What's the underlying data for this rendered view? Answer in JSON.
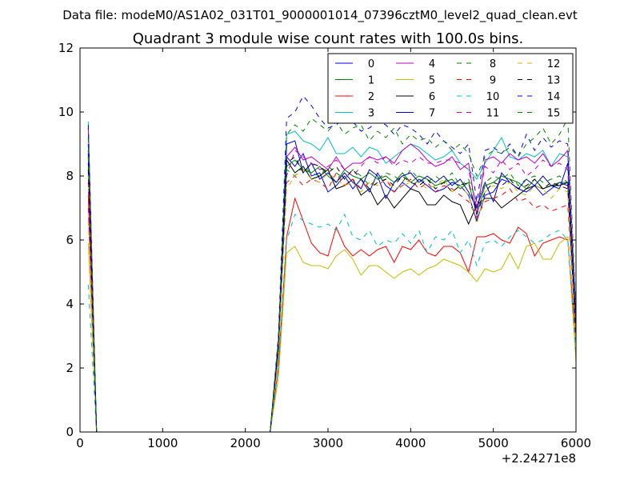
{
  "chart_data": {
    "type": "line",
    "suptitle": "Data file: modeM0/AS1A02_031T01_9000001014_07396cztM0_level2_quad_clean.evt",
    "title": "Quadrant 3 module wise count rates with 100.0s bins.",
    "xlabel": "",
    "ylabel": "",
    "x_offset_label": "+2.24271e8",
    "xlim": [
      0,
      6000
    ],
    "ylim": [
      0,
      12
    ],
    "xticks": [
      0,
      1000,
      2000,
      3000,
      4000,
      5000,
      6000
    ],
    "xtick_labels": [
      "0",
      "1000",
      "2000",
      "3000",
      "4000",
      "5000",
      "6000"
    ],
    "yticks": [
      0,
      2,
      4,
      6,
      8,
      10,
      12
    ],
    "ytick_labels": [
      "0",
      "2",
      "4",
      "6",
      "8",
      "10",
      "12"
    ],
    "x": [
      100,
      200,
      300,
      400,
      500,
      600,
      700,
      800,
      900,
      1000,
      1100,
      1200,
      1300,
      1400,
      1500,
      1600,
      1700,
      1800,
      1900,
      2000,
      2100,
      2200,
      2300,
      2400,
      2500,
      2600,
      2700,
      2800,
      2900,
      3000,
      3100,
      3200,
      3300,
      3400,
      3500,
      3600,
      3700,
      3800,
      3900,
      4000,
      4100,
      4200,
      4300,
      4400,
      4500,
      4600,
      4700,
      4800,
      4900,
      5000,
      5100,
      5200,
      5300,
      5400,
      5500,
      5600,
      5700,
      5800,
      5900,
      6000
    ],
    "legend": {
      "location": "upper right",
      "columns": 4
    },
    "series": [
      {
        "name": "0",
        "color": "#0000ff",
        "linestyle": "solid",
        "values": [
          9.0,
          0.0,
          0,
          0,
          0,
          0,
          0,
          0,
          0,
          0,
          0,
          0,
          0,
          0,
          0,
          0,
          0,
          0,
          0,
          0,
          0,
          0,
          0,
          2.5,
          8.6,
          8.3,
          8.7,
          8.0,
          8.1,
          7.5,
          7.7,
          8.0,
          7.6,
          7.9,
          7.5,
          8.1,
          7.7,
          7.5,
          7.8,
          7.6,
          7.9,
          7.7,
          7.5,
          7.6,
          7.8,
          7.7,
          7.4,
          6.6,
          7.4,
          7.5,
          7.9,
          7.8,
          7.6,
          7.5,
          7.7,
          7.4,
          7.6,
          7.8,
          7.7,
          3.2
        ]
      },
      {
        "name": "1",
        "color": "#008000",
        "linestyle": "solid",
        "values": [
          8.8,
          0.0,
          0,
          0,
          0,
          0,
          0,
          0,
          0,
          0,
          0,
          0,
          0,
          0,
          0,
          0,
          0,
          0,
          0,
          0,
          0,
          0,
          0,
          2.6,
          8.3,
          8.5,
          8.2,
          8.1,
          8.3,
          8.0,
          7.8,
          8.2,
          8.0,
          7.9,
          8.1,
          7.9,
          8.0,
          7.8,
          8.1,
          7.8,
          8.0,
          7.9,
          7.7,
          7.8,
          7.9,
          7.6,
          7.8,
          6.8,
          7.7,
          7.8,
          8.0,
          7.9,
          7.8,
          7.6,
          7.9,
          7.6,
          7.7,
          7.8,
          7.8,
          3.1
        ]
      },
      {
        "name": "2",
        "color": "#ff0000",
        "linestyle": "solid",
        "values": [
          7.4,
          0.0,
          0,
          0,
          0,
          0,
          0,
          0,
          0,
          0,
          0,
          0,
          0,
          0,
          0,
          0,
          0,
          0,
          0,
          0,
          0,
          0,
          0,
          2.0,
          6.1,
          7.3,
          6.6,
          5.9,
          5.6,
          5.5,
          6.4,
          5.8,
          5.5,
          5.7,
          5.5,
          5.7,
          5.8,
          5.3,
          5.8,
          5.7,
          6.0,
          5.6,
          5.5,
          5.8,
          5.8,
          5.6,
          5.0,
          6.1,
          6.1,
          6.2,
          6.0,
          5.9,
          6.4,
          6.2,
          5.5,
          5.9,
          6.0,
          6.1,
          6.0,
          2.8
        ]
      },
      {
        "name": "3",
        "color": "#00bfbf",
        "linestyle": "solid",
        "values": [
          9.7,
          0.0,
          0,
          0,
          0,
          0,
          0,
          0,
          0,
          0,
          0,
          0,
          0,
          0,
          0,
          0,
          0,
          0,
          0,
          0,
          0,
          0,
          0,
          2.9,
          9.3,
          9.4,
          9.1,
          9.0,
          8.8,
          9.2,
          8.7,
          8.7,
          8.9,
          8.6,
          8.9,
          8.8,
          8.4,
          8.6,
          8.8,
          9.0,
          8.9,
          8.7,
          8.5,
          8.6,
          8.8,
          8.4,
          8.2,
          7.9,
          8.4,
          8.8,
          9.2,
          8.6,
          8.5,
          8.7,
          8.6,
          8.8,
          8.3,
          8.7,
          8.6,
          3.5
        ]
      },
      {
        "name": "4",
        "color": "#bf00bf",
        "linestyle": "solid",
        "values": [
          9.5,
          0.0,
          0,
          0,
          0,
          0,
          0,
          0,
          0,
          0,
          0,
          0,
          0,
          0,
          0,
          0,
          0,
          0,
          0,
          0,
          0,
          0,
          0,
          2.8,
          8.6,
          8.9,
          8.5,
          8.6,
          8.4,
          8.2,
          8.6,
          8.2,
          8.4,
          8.4,
          8.6,
          8.5,
          8.6,
          8.4,
          8.8,
          9.0,
          8.8,
          8.5,
          8.3,
          8.4,
          8.6,
          8.2,
          8.4,
          6.8,
          8.5,
          8.6,
          8.4,
          8.7,
          8.5,
          8.6,
          8.4,
          8.7,
          8.3,
          8.5,
          8.8,
          3.3
        ]
      },
      {
        "name": "5",
        "color": "#bfbf00",
        "linestyle": "solid",
        "values": [
          5.9,
          0.0,
          0,
          0,
          0,
          0,
          0,
          0,
          0,
          0,
          0,
          0,
          0,
          0,
          0,
          0,
          0,
          0,
          0,
          0,
          0,
          0,
          0,
          1.7,
          5.6,
          5.8,
          5.3,
          5.2,
          5.2,
          5.1,
          5.5,
          5.7,
          5.4,
          4.9,
          5.2,
          5.2,
          5.0,
          4.8,
          5.0,
          5.1,
          4.9,
          5.1,
          5.2,
          5.4,
          5.3,
          5.2,
          5.0,
          4.7,
          5.1,
          5.0,
          5.1,
          5.6,
          5.1,
          5.8,
          5.9,
          5.4,
          5.4,
          5.9,
          6.1,
          2.2
        ]
      },
      {
        "name": "6",
        "color": "#000000",
        "linestyle": "solid",
        "values": [
          8.4,
          0.0,
          0,
          0,
          0,
          0,
          0,
          0,
          0,
          0,
          0,
          0,
          0,
          0,
          0,
          0,
          0,
          0,
          0,
          0,
          0,
          0,
          0,
          2.7,
          8.5,
          8.1,
          8.3,
          7.9,
          8.0,
          8.2,
          7.6,
          7.7,
          7.9,
          7.4,
          7.6,
          7.1,
          7.4,
          7.0,
          7.3,
          7.6,
          7.5,
          7.1,
          7.1,
          7.4,
          7.2,
          7.1,
          6.5,
          7.1,
          7.3,
          7.3,
          7.0,
          7.2,
          7.4,
          7.6,
          7.7,
          7.6,
          7.7,
          7.7,
          7.8,
          3.0
        ]
      },
      {
        "name": "7",
        "color": "#0000cc",
        "linestyle": "solid",
        "values": [
          8.7,
          0.0,
          0,
          0,
          0,
          0,
          0,
          0,
          0,
          0,
          0,
          0,
          0,
          0,
          0,
          0,
          0,
          0,
          0,
          0,
          0,
          0,
          0,
          2.6,
          9.0,
          9.1,
          8.1,
          8.4,
          7.9,
          8.1,
          7.8,
          8.1,
          7.8,
          7.6,
          8.2,
          8.0,
          7.3,
          7.8,
          8.0,
          8.1,
          7.8,
          8.0,
          7.8,
          8.0,
          7.7,
          7.9,
          7.5,
          7.0,
          7.8,
          7.2,
          8.1,
          7.8,
          7.6,
          7.9,
          7.7,
          8.0,
          7.7,
          7.6,
          8.4,
          3.2
        ]
      },
      {
        "name": "8",
        "color": "#008000",
        "linestyle": "dashed",
        "values": [
          8.6,
          0.0,
          0,
          0,
          0,
          0,
          0,
          0,
          0,
          0,
          0,
          0,
          0,
          0,
          0,
          0,
          0,
          0,
          0,
          0,
          0,
          0,
          0,
          2.7,
          8.2,
          8.0,
          8.3,
          8.1,
          8.0,
          8.3,
          8.1,
          7.9,
          8.2,
          8.0,
          7.7,
          7.9,
          8.1,
          8.0,
          7.8,
          8.2,
          7.9,
          7.8,
          8.0,
          7.8,
          8.1,
          7.7,
          7.9,
          7.2,
          7.8,
          8.0,
          7.9,
          8.1,
          7.7,
          7.9,
          8.0,
          7.8,
          7.9,
          8.0,
          7.8,
          3.0
        ]
      },
      {
        "name": "9",
        "color": "#ff0000",
        "linestyle": "dashed",
        "values": [
          7.8,
          0.0,
          0,
          0,
          0,
          0,
          0,
          0,
          0,
          0,
          0,
          0,
          0,
          0,
          0,
          0,
          0,
          0,
          0,
          0,
          0,
          0,
          0,
          2.4,
          7.8,
          8.0,
          7.7,
          7.9,
          7.8,
          7.6,
          8.1,
          7.7,
          7.9,
          7.6,
          7.8,
          7.7,
          7.9,
          7.5,
          7.7,
          7.9,
          7.6,
          7.8,
          7.5,
          7.7,
          7.6,
          7.4,
          7.2,
          6.7,
          7.2,
          7.3,
          7.4,
          7.6,
          7.2,
          7.3,
          7.0,
          7.1,
          6.9,
          7.0,
          7.1,
          2.8
        ]
      },
      {
        "name": "10",
        "color": "#00bfbf",
        "linestyle": "dashed",
        "values": [
          4.6,
          0.0,
          0,
          0,
          0,
          0,
          0,
          0,
          0,
          0,
          0,
          0,
          0,
          0,
          0,
          0,
          0,
          0,
          0,
          0,
          0,
          0,
          0,
          2.0,
          6.0,
          6.8,
          6.6,
          6.5,
          6.4,
          6.5,
          6.3,
          6.8,
          6.1,
          6.0,
          6.3,
          5.8,
          6.0,
          5.9,
          6.2,
          5.9,
          6.3,
          5.6,
          6.1,
          6.0,
          6.3,
          5.6,
          6.0,
          5.2,
          5.9,
          6.0,
          5.8,
          6.1,
          6.3,
          6.1,
          5.9,
          6.0,
          6.2,
          6.3,
          6.0,
          2.4
        ]
      },
      {
        "name": "11",
        "color": "#bf00bf",
        "linestyle": "dashed",
        "values": [
          7.0,
          0.0,
          0,
          0,
          0,
          0,
          0,
          0,
          0,
          0,
          0,
          0,
          0,
          0,
          0,
          0,
          0,
          0,
          0,
          0,
          0,
          0,
          0,
          2.5,
          8.0,
          8.8,
          8.6,
          8.4,
          8.2,
          8.3,
          8.5,
          8.2,
          8.0,
          8.3,
          8.6,
          8.4,
          8.6,
          8.3,
          8.5,
          8.4,
          8.6,
          8.4,
          8.4,
          8.5,
          8.5,
          8.4,
          8.2,
          7.0,
          8.3,
          8.1,
          8.5,
          8.2,
          8.4,
          8.0,
          8.2,
          8.5,
          8.3,
          8.4,
          8.2,
          3.1
        ]
      },
      {
        "name": "12",
        "color": "#bfbf00",
        "linestyle": "dashed",
        "values": [
          6.6,
          0.0,
          0,
          0,
          0,
          0,
          0,
          0,
          0,
          0,
          0,
          0,
          0,
          0,
          0,
          0,
          0,
          0,
          0,
          0,
          0,
          0,
          0,
          2.3,
          7.6,
          8.0,
          8.2,
          7.9,
          7.8,
          8.1,
          7.9,
          7.7,
          7.8,
          7.5,
          7.8,
          7.7,
          7.9,
          7.6,
          7.7,
          7.8,
          7.8,
          7.6,
          7.7,
          7.9,
          7.5,
          7.7,
          7.4,
          6.5,
          7.5,
          7.7,
          7.6,
          7.8,
          7.5,
          7.4,
          7.7,
          7.6,
          7.3,
          7.6,
          7.5,
          2.7
        ]
      },
      {
        "name": "13",
        "color": "#000000",
        "linestyle": "dashed",
        "values": [
          8.2,
          0.0,
          0,
          0,
          0,
          0,
          0,
          0,
          0,
          0,
          0,
          0,
          0,
          0,
          0,
          0,
          0,
          0,
          0,
          0,
          0,
          0,
          0,
          2.7,
          8.4,
          8.6,
          8.1,
          8.4,
          8.3,
          8.1,
          8.3,
          7.9,
          8.2,
          7.9,
          7.6,
          7.8,
          7.9,
          7.7,
          8.0,
          7.8,
          7.7,
          7.9,
          7.6,
          7.8,
          7.5,
          7.7,
          7.8,
          6.8,
          7.5,
          7.8,
          7.7,
          7.9,
          7.6,
          7.7,
          7.9,
          7.6,
          7.8,
          7.7,
          7.6,
          3.0
        ]
      },
      {
        "name": "14",
        "color": "#0000ff",
        "linestyle": "dashed",
        "values": [
          9.6,
          0.0,
          0,
          0,
          0,
          0,
          0,
          0,
          0,
          0,
          0,
          0,
          0,
          0,
          0,
          0,
          0,
          0,
          0,
          0,
          0,
          0,
          0,
          3.0,
          9.8,
          10.0,
          10.5,
          10.2,
          9.8,
          9.5,
          9.6,
          9.8,
          9.7,
          9.4,
          9.5,
          9.7,
          9.6,
          9.3,
          9.6,
          9.5,
          9.3,
          9.0,
          9.4,
          9.1,
          8.9,
          8.7,
          9.0,
          7.2,
          8.8,
          8.9,
          8.7,
          9.0,
          8.6,
          9.3,
          8.8,
          9.2,
          8.9,
          9.1,
          9.0,
          3.6
        ]
      },
      {
        "name": "15",
        "color": "#008000",
        "linestyle": "dashed",
        "values": [
          9.2,
          0.0,
          0,
          0,
          0,
          0,
          0,
          0,
          0,
          0,
          0,
          0,
          0,
          0,
          0,
          0,
          0,
          0,
          0,
          0,
          0,
          0,
          0,
          2.9,
          9.3,
          9.6,
          9.4,
          9.8,
          9.6,
          9.4,
          9.7,
          9.3,
          9.5,
          9.6,
          9.1,
          9.4,
          9.2,
          9.5,
          9.0,
          9.3,
          9.1,
          9.2,
          8.9,
          9.1,
          8.8,
          9.0,
          8.7,
          8.0,
          8.6,
          8.8,
          8.7,
          8.9,
          8.6,
          9.0,
          9.2,
          9.5,
          9.0,
          9.3,
          9.8,
          3.7
        ]
      }
    ]
  }
}
